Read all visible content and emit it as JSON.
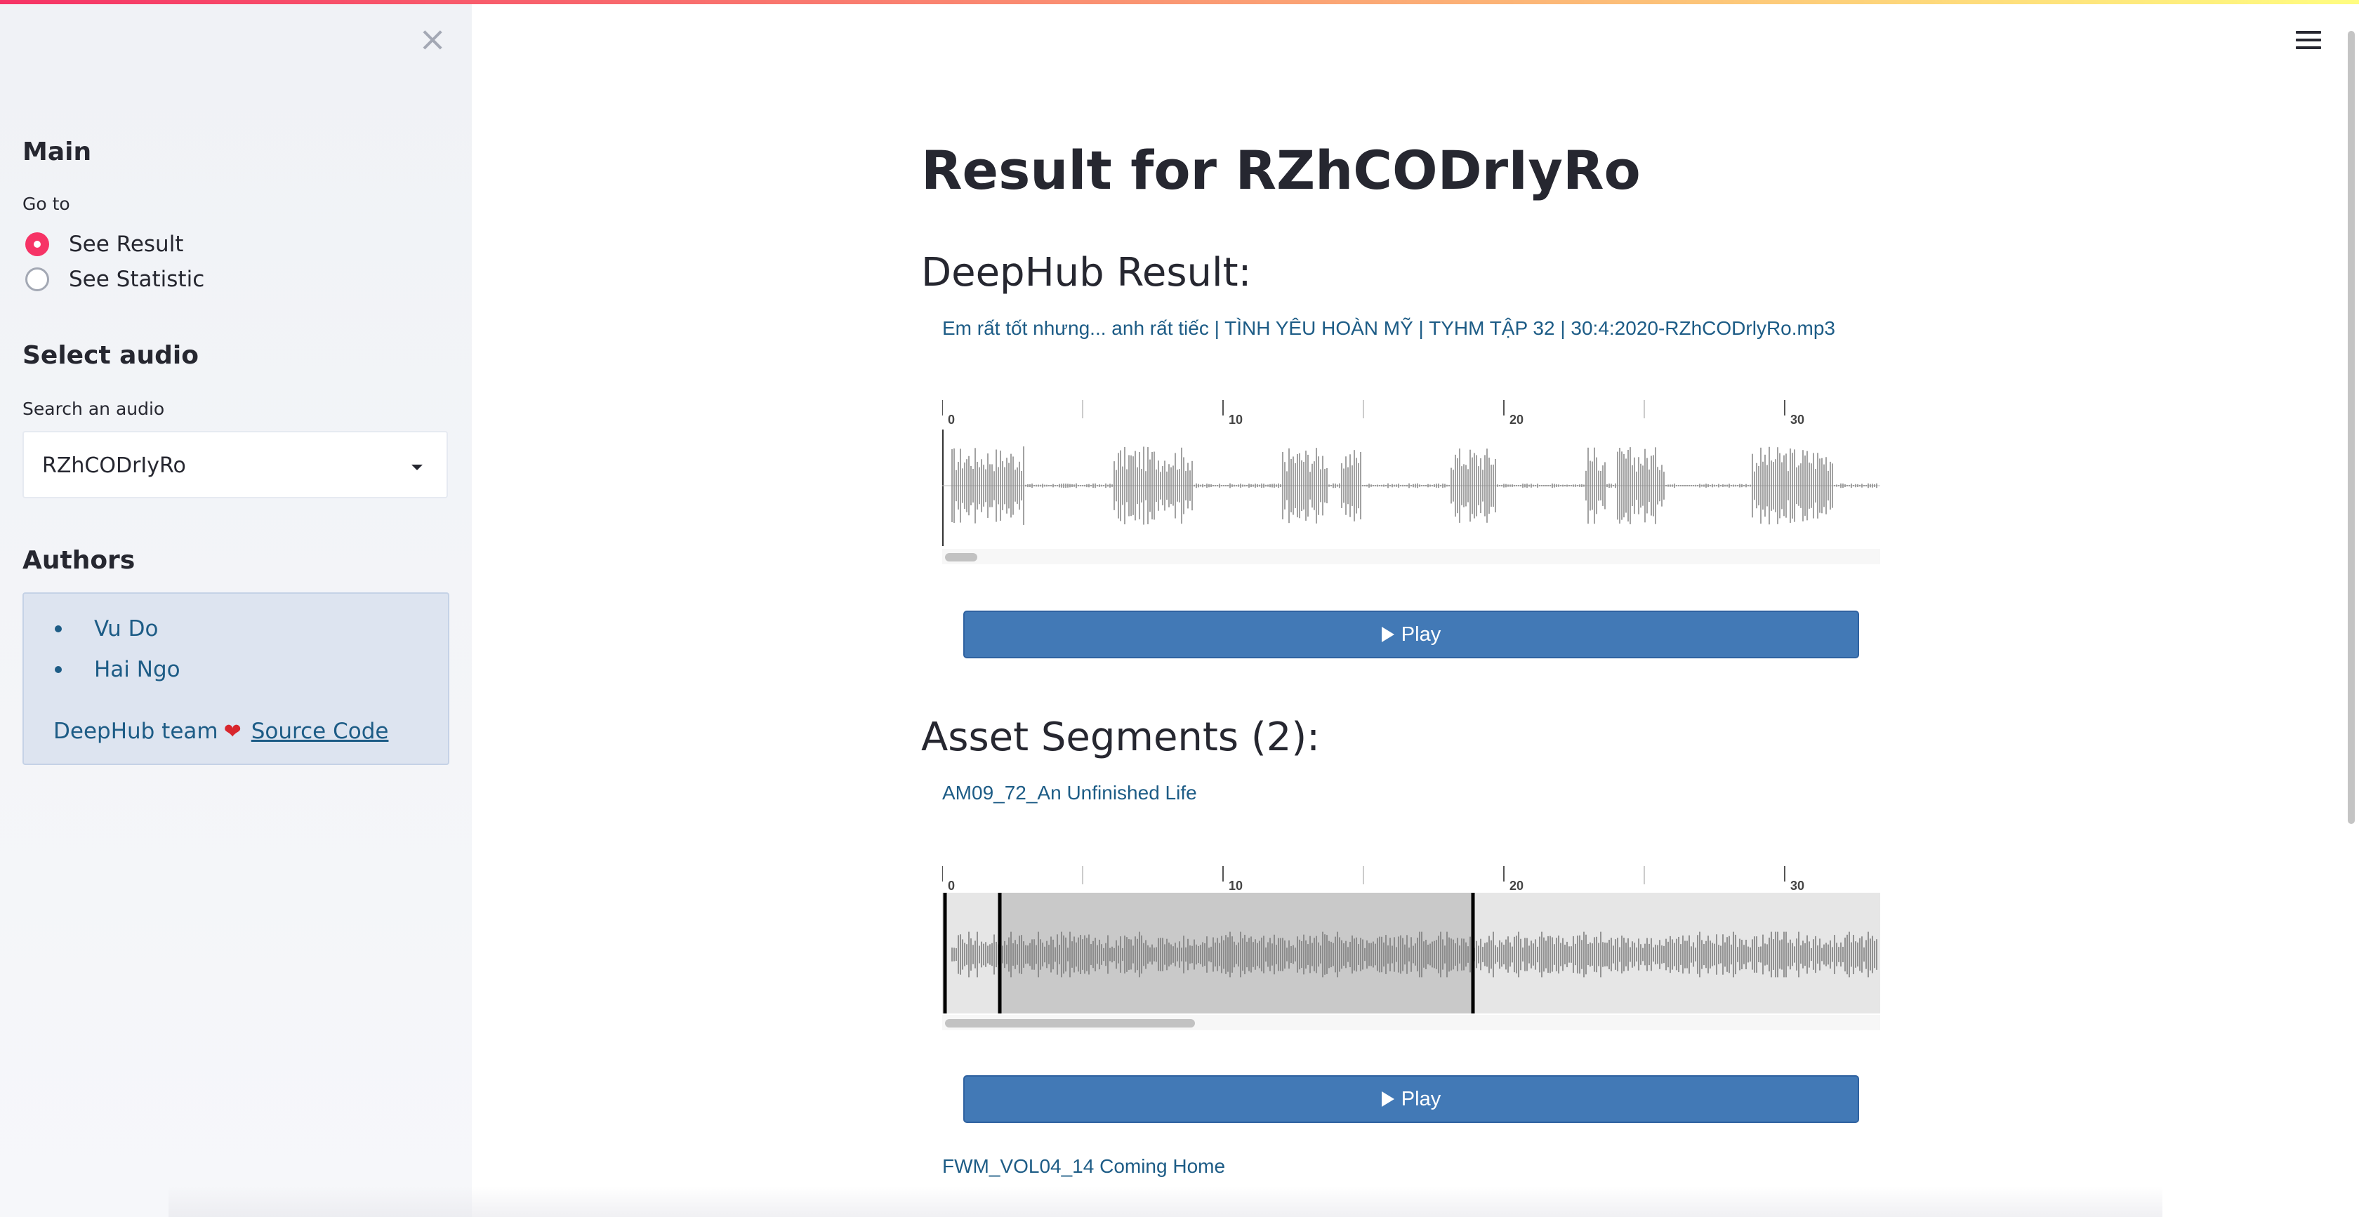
{
  "colors": {
    "accent": "#f63366",
    "link": "#1d5c86",
    "play_button": "#4279b6",
    "sidebar_bg": "#f0f2f6",
    "info_box": "#dde4f0"
  },
  "sidebar": {
    "close_icon": "close-icon",
    "main_heading": "Main",
    "goto_label": "Go to",
    "options": [
      {
        "label": "See Result",
        "selected": true
      },
      {
        "label": "See Statistic",
        "selected": false
      }
    ],
    "select_heading": "Select audio",
    "search_label": "Search an audio",
    "selected_audio": "RZhCODrIyRo",
    "authors_heading": "Authors",
    "authors": [
      "Vu Do",
      "Hai Ngo"
    ],
    "credit_text": "DeepHub team",
    "heart": "❤",
    "source_link": "Source Code"
  },
  "main": {
    "menu_icon": "hamburger-menu-icon",
    "title": "Result for RZhCODrIyRo",
    "result_heading": "DeepHub Result:",
    "result_file": "Em rất tốt nhưng... anh rất tiếc | TÌNH YÊU HOÀN MỸ | TYHM TẬP 32 | 30:4:2020-RZhCODrlyRo.mp3",
    "timeline_ticks": [
      "0",
      "10",
      "20",
      "30"
    ],
    "play_label": "Play",
    "segments_heading": "Asset Segments (2):",
    "segments": [
      {
        "name": "AM09_72_An Unfinished Life"
      },
      {
        "name": "FWM_VOL04_14 Coming Home"
      }
    ]
  }
}
